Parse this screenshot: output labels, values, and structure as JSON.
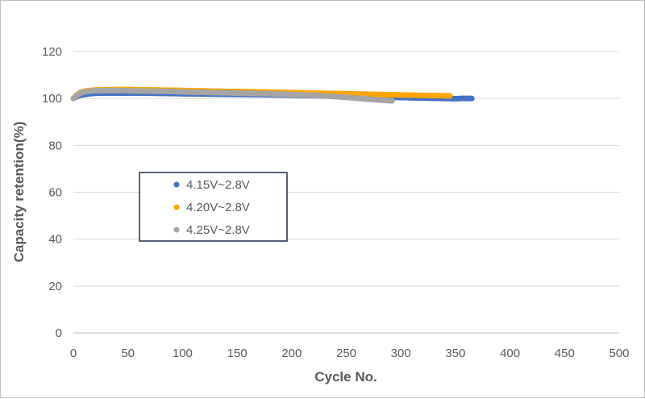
{
  "chart_data": {
    "type": "scatter",
    "title": "",
    "xlabel": "Cycle No.",
    "ylabel": "Capacity retention(%)",
    "xlim": [
      0,
      500
    ],
    "ylim": [
      0,
      120
    ],
    "xticks": [
      0,
      50,
      100,
      150,
      200,
      250,
      300,
      350,
      400,
      450,
      500
    ],
    "yticks": [
      0,
      20,
      40,
      60,
      80,
      100,
      120
    ],
    "grid": "horizontal",
    "legend_position": "left-middle",
    "series": [
      {
        "name": "4.15V~2.8V",
        "color": "#4472c4",
        "points": [
          [
            0,
            100
          ],
          [
            3,
            100.8
          ],
          [
            6,
            101.3
          ],
          [
            10,
            101.7
          ],
          [
            15,
            102
          ],
          [
            20,
            102.2
          ],
          [
            30,
            102.3
          ],
          [
            40,
            102.3
          ],
          [
            50,
            102.3
          ],
          [
            60,
            102.3
          ],
          [
            75,
            102.2
          ],
          [
            90,
            102.1
          ],
          [
            100,
            102
          ],
          [
            120,
            101.9
          ],
          [
            140,
            101.8
          ],
          [
            160,
            101.7
          ],
          [
            180,
            101.6
          ],
          [
            200,
            101.4
          ],
          [
            220,
            101.2
          ],
          [
            240,
            101
          ],
          [
            260,
            100.8
          ],
          [
            280,
            100.6
          ],
          [
            300,
            100.4
          ],
          [
            320,
            100.2
          ],
          [
            340,
            100
          ],
          [
            350,
            99.9
          ],
          [
            355,
            100
          ],
          [
            360,
            100
          ],
          [
            365,
            100
          ]
        ]
      },
      {
        "name": "4.20V~2.8V",
        "color": "#ffa500",
        "points": [
          [
            0,
            100
          ],
          [
            3,
            101.5
          ],
          [
            6,
            102.5
          ],
          [
            10,
            103.1
          ],
          [
            15,
            103.4
          ],
          [
            20,
            103.6
          ],
          [
            30,
            103.7
          ],
          [
            40,
            103.8
          ],
          [
            50,
            103.8
          ],
          [
            60,
            103.7
          ],
          [
            75,
            103.6
          ],
          [
            90,
            103.5
          ],
          [
            100,
            103.4
          ],
          [
            120,
            103.2
          ],
          [
            140,
            103
          ],
          [
            160,
            102.9
          ],
          [
            180,
            102.7
          ],
          [
            200,
            102.5
          ],
          [
            220,
            102.3
          ],
          [
            240,
            102.1
          ],
          [
            260,
            101.9
          ],
          [
            280,
            101.7
          ],
          [
            300,
            101.5
          ],
          [
            320,
            101.3
          ],
          [
            335,
            101.2
          ],
          [
            345,
            101.1
          ]
        ]
      },
      {
        "name": "4.25V~2.8V",
        "color": "#a5a5a5",
        "points": [
          [
            0,
            100
          ],
          [
            3,
            101.2
          ],
          [
            6,
            102.2
          ],
          [
            10,
            102.8
          ],
          [
            15,
            103.1
          ],
          [
            20,
            103.3
          ],
          [
            30,
            103.4
          ],
          [
            40,
            103.4
          ],
          [
            50,
            103.3
          ],
          [
            60,
            103.2
          ],
          [
            75,
            103.1
          ],
          [
            90,
            103
          ],
          [
            100,
            102.8
          ],
          [
            120,
            102.6
          ],
          [
            140,
            102.4
          ],
          [
            160,
            102.2
          ],
          [
            180,
            102
          ],
          [
            200,
            101.7
          ],
          [
            220,
            101.3
          ],
          [
            240,
            100.8
          ],
          [
            255,
            100.3
          ],
          [
            265,
            99.9
          ],
          [
            275,
            99.5
          ],
          [
            285,
            99.2
          ],
          [
            292,
            99
          ]
        ]
      }
    ]
  }
}
